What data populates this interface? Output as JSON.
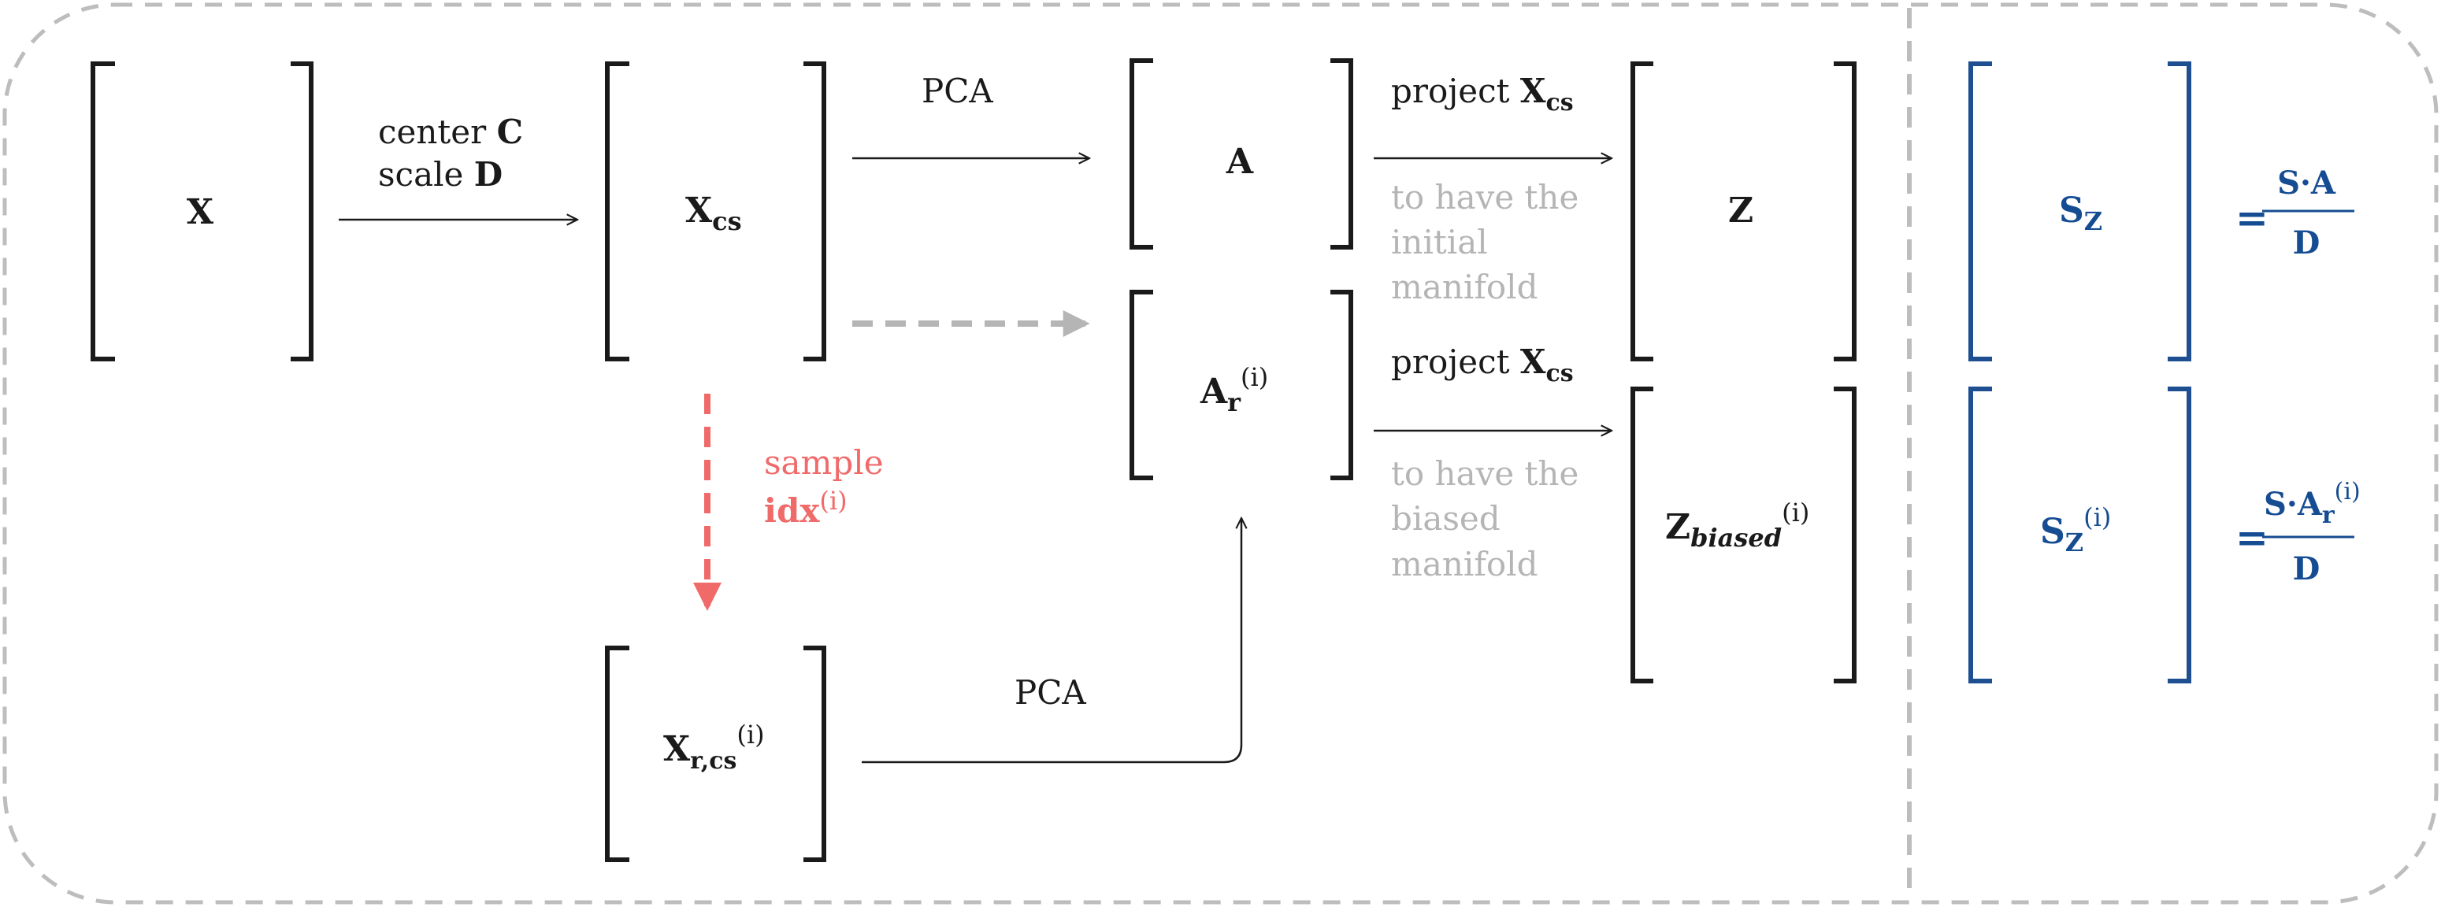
{
  "matrices": {
    "x": "X",
    "xcs": {
      "base": "X",
      "sub": "cs"
    },
    "a": "A",
    "ar": {
      "base": "A",
      "sub": "r",
      "sup": "(i)"
    },
    "z": "Z",
    "zbiased": {
      "base": "Z",
      "sub": "biased",
      "sup": "(i)"
    },
    "xrcs": {
      "base": "X",
      "sub": "r,cs",
      "sup": "(i)"
    }
  },
  "labels": {
    "center_word": "center ",
    "center_var": "C",
    "scale_word": "scale ",
    "scale_var": "D",
    "pca_top": "PCA",
    "pca_bottom": "PCA",
    "sample_word": "sample",
    "sample_idx": "idx",
    "sample_sup": "(i)",
    "project_top_word": "project ",
    "project_top_var": "X",
    "project_top_sub": "cs",
    "project_bottom_word": "project ",
    "project_bottom_var": "X",
    "project_bottom_sub": "cs",
    "initial_lines": [
      "to have the",
      "initial",
      "manifold"
    ],
    "biased_lines": [
      "to have the",
      "biased",
      "manifold"
    ]
  },
  "formulas": {
    "sz": {
      "base": "S",
      "sub": "Z"
    },
    "sz_i": {
      "base": "S",
      "sub": "Z",
      "sup": "(i)"
    },
    "eq1": {
      "eq": "=",
      "numerator": "S·A",
      "denominator": "D"
    },
    "eq2": {
      "eq": "=",
      "num_base": "S·A",
      "num_sub": "r",
      "num_sup": "(i)",
      "denominator": "D"
    }
  },
  "colors": {
    "black": "#1a1a1a",
    "gray": "#b5b5b5",
    "red": "#f06a6a",
    "blue": "#154c92",
    "border": "#bdbdbd"
  }
}
